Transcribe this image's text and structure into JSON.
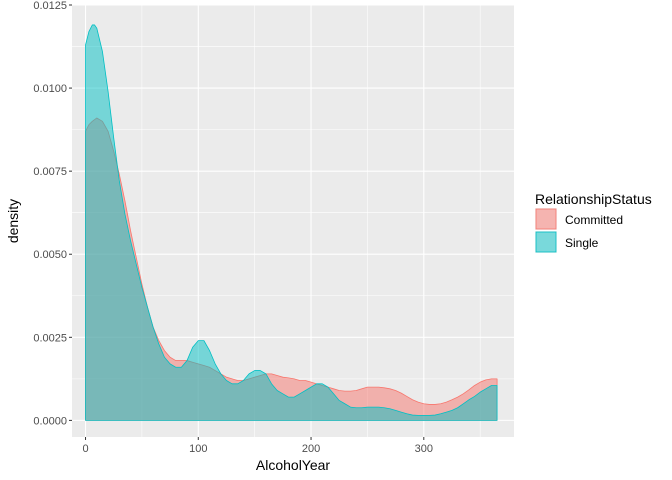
{
  "chart_data": {
    "type": "area",
    "xlabel": "AlcoholYear",
    "ylabel": "density",
    "xlim": [
      -12,
      380
    ],
    "ylim": [
      -0.0005,
      0.0125
    ],
    "xticks": [
      0,
      100,
      200,
      300
    ],
    "xtick_labels": [
      "0",
      "100",
      "200",
      "300"
    ],
    "yticks": [
      0.0,
      0.0025,
      0.005,
      0.0075,
      0.01,
      0.0125
    ],
    "ytick_labels": [
      "0.0000",
      "0.0025",
      "0.0050",
      "0.0075",
      "0.0100",
      "0.0125"
    ],
    "grid": true,
    "legend": {
      "title": "RelationshipStatus",
      "placement": "right"
    },
    "series": [
      {
        "name": "Committed",
        "color": "#F8766D",
        "x": [
          0,
          3,
          6,
          10,
          15,
          20,
          25,
          30,
          35,
          40,
          45,
          50,
          55,
          60,
          65,
          70,
          75,
          80,
          85,
          90,
          95,
          100,
          105,
          110,
          115,
          120,
          125,
          130,
          135,
          140,
          145,
          150,
          155,
          160,
          165,
          170,
          175,
          180,
          185,
          190,
          195,
          200,
          205,
          210,
          215,
          220,
          225,
          230,
          235,
          240,
          245,
          250,
          255,
          260,
          265,
          270,
          275,
          280,
          285,
          290,
          295,
          300,
          305,
          310,
          315,
          320,
          325,
          330,
          335,
          340,
          345,
          350,
          355,
          360,
          365
        ],
        "y": [
          0.0087,
          0.0089,
          0.009,
          0.0091,
          0.009,
          0.0087,
          0.0081,
          0.0074,
          0.0066,
          0.0057,
          0.0049,
          0.0041,
          0.0034,
          0.0028,
          0.0024,
          0.0021,
          0.0019,
          0.0018,
          0.0018,
          0.0018,
          0.00175,
          0.0017,
          0.00165,
          0.0016,
          0.0015,
          0.0014,
          0.0013,
          0.00125,
          0.0012,
          0.0012,
          0.00125,
          0.0013,
          0.00135,
          0.0014,
          0.0014,
          0.00135,
          0.0013,
          0.00128,
          0.00125,
          0.0012,
          0.0012,
          0.00115,
          0.0011,
          0.00105,
          0.001,
          0.00095,
          0.0009,
          0.00088,
          0.00088,
          0.0009,
          0.00095,
          0.001,
          0.001,
          0.001,
          0.00098,
          0.00095,
          0.0009,
          0.00082,
          0.00072,
          0.00062,
          0.00055,
          0.0005,
          0.00048,
          0.00048,
          0.0005,
          0.00055,
          0.00062,
          0.0007,
          0.0008,
          0.00092,
          0.00105,
          0.00115,
          0.00122,
          0.00125,
          0.00125
        ]
      },
      {
        "name": "Single",
        "color": "#00BFC4",
        "x": [
          0,
          3,
          6,
          8,
          10,
          15,
          20,
          25,
          30,
          35,
          40,
          45,
          50,
          55,
          60,
          65,
          70,
          75,
          80,
          85,
          90,
          95,
          100,
          105,
          110,
          115,
          120,
          125,
          130,
          135,
          140,
          145,
          150,
          155,
          160,
          165,
          170,
          175,
          180,
          185,
          190,
          195,
          200,
          205,
          210,
          215,
          220,
          225,
          230,
          235,
          240,
          245,
          250,
          255,
          260,
          265,
          270,
          275,
          280,
          285,
          290,
          295,
          300,
          305,
          310,
          315,
          320,
          325,
          330,
          335,
          340,
          345,
          350,
          355,
          360,
          365
        ],
        "y": [
          0.0113,
          0.0117,
          0.0119,
          0.0119,
          0.0118,
          0.0111,
          0.0099,
          0.0085,
          0.0072,
          0.0062,
          0.0054,
          0.0047,
          0.004,
          0.0034,
          0.0028,
          0.0023,
          0.0019,
          0.0017,
          0.0016,
          0.0016,
          0.0018,
          0.0022,
          0.0024,
          0.0024,
          0.0021,
          0.0017,
          0.0014,
          0.0012,
          0.0011,
          0.0011,
          0.0012,
          0.0014,
          0.0015,
          0.0015,
          0.0014,
          0.0011,
          0.0009,
          0.0008,
          0.0007,
          0.0007,
          0.0008,
          0.0009,
          0.001,
          0.0011,
          0.0011,
          0.001,
          0.0008,
          0.0006,
          0.0005,
          0.0004,
          0.00038,
          0.00038,
          0.0004,
          0.0004,
          0.0004,
          0.00038,
          0.00035,
          0.0003,
          0.00025,
          0.0002,
          0.00016,
          0.00015,
          0.00015,
          0.00015,
          0.00016,
          0.0002,
          0.00025,
          0.0003,
          0.00038,
          0.0005,
          0.00062,
          0.00072,
          0.00085,
          0.00095,
          0.00105,
          0.00105
        ]
      }
    ]
  }
}
